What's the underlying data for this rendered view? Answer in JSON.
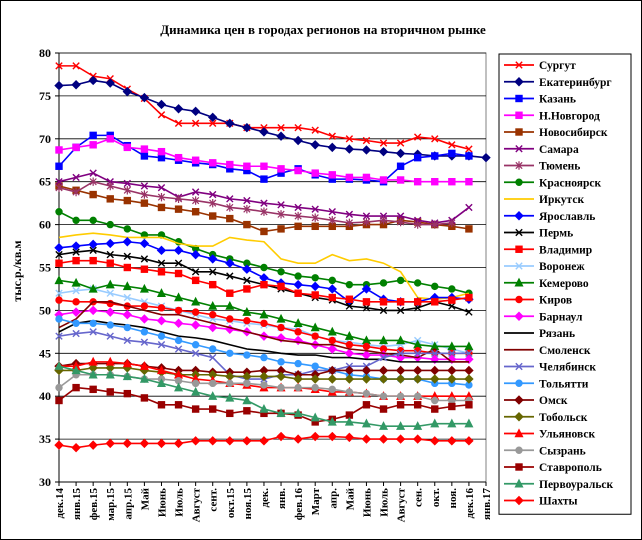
{
  "chart_data": {
    "type": "line",
    "title": "Динамика цен в городах регионов на вторичном рынке",
    "ylabel": "тыс.р./кв.м",
    "xlabel": "",
    "ylim": [
      30,
      80
    ],
    "yticks": [
      30,
      35,
      40,
      45,
      50,
      55,
      60,
      65,
      70,
      75,
      80
    ],
    "x_labels": [
      "дек.14",
      "янв.15",
      "фев.15",
      "мар.15",
      "апр.15",
      "Май",
      "Июнь",
      "Июль",
      "Август",
      "сент.",
      "окт.15",
      "ноя.15",
      "дек.",
      "янв.",
      "фев.16",
      "Март",
      "апр.",
      "Май",
      "Июнь",
      "Июль",
      "Август",
      "сен.",
      "окт.",
      "ноя.",
      "дек.16",
      "янв.17"
    ],
    "grid": true,
    "legend_position": "right",
    "series": [
      {
        "name": "Сургут",
        "color": "#ff0000",
        "marker": "x",
        "values": [
          78.5,
          78.5,
          77.3,
          77.0,
          75.8,
          74.7,
          72.8,
          71.8,
          71.8,
          71.8,
          71.8,
          71.3,
          71.3,
          71.3,
          71.3,
          71.0,
          70.3,
          70.0,
          69.8,
          69.5,
          69.5,
          70.2,
          70.0,
          69.3,
          68.8,
          null
        ]
      },
      {
        "name": "Екатеринбург",
        "color": "#000080",
        "marker": "diamond",
        "values": [
          76.2,
          76.3,
          76.8,
          76.5,
          75.5,
          74.8,
          74.0,
          73.5,
          73.2,
          72.5,
          71.8,
          71.3,
          70.8,
          70.3,
          69.8,
          69.3,
          69.0,
          68.8,
          68.7,
          68.5,
          68.3,
          68.2,
          68.0,
          68.0,
          68.0,
          67.8
        ]
      },
      {
        "name": "Казань",
        "color": "#0000ff",
        "marker": "square",
        "values": [
          66.8,
          69.0,
          70.4,
          70.4,
          69.2,
          68.0,
          67.8,
          67.5,
          67.2,
          67.0,
          66.5,
          66.3,
          65.3,
          66.0,
          66.5,
          65.8,
          65.3,
          65.3,
          65.2,
          65.0,
          66.8,
          67.8,
          68.0,
          68.3,
          68.0,
          null
        ]
      },
      {
        "name": "Н.Новгород",
        "color": "#ff00ff",
        "marker": "square",
        "values": [
          68.7,
          69.0,
          69.3,
          70.0,
          69.0,
          68.8,
          68.5,
          67.8,
          67.5,
          67.2,
          67.0,
          66.8,
          66.8,
          66.5,
          66.3,
          66.0,
          65.8,
          65.5,
          65.5,
          65.2,
          65.2,
          65.0,
          65.0,
          65.0,
          65.0,
          null
        ]
      },
      {
        "name": "Новосибирск",
        "color": "#993300",
        "marker": "square",
        "values": [
          64.5,
          64.0,
          63.5,
          63.0,
          62.8,
          62.5,
          62.0,
          61.8,
          61.5,
          61.0,
          60.7,
          60.0,
          59.2,
          59.5,
          59.8,
          59.8,
          59.8,
          59.8,
          60.0,
          60.0,
          60.5,
          60.3,
          60.0,
          59.8,
          59.5,
          null
        ]
      },
      {
        "name": "Самара",
        "color": "#800080",
        "marker": "x",
        "values": [
          65.0,
          65.5,
          66.0,
          65.0,
          64.8,
          64.5,
          64.3,
          63.2,
          63.8,
          63.5,
          63.0,
          62.8,
          62.5,
          62.3,
          62.0,
          61.8,
          61.5,
          61.2,
          61.0,
          61.0,
          61.0,
          60.5,
          60.2,
          60.5,
          62.0,
          null
        ]
      },
      {
        "name": "Тюмень",
        "color": "#993366",
        "marker": "star",
        "values": [
          64.3,
          63.8,
          65.0,
          64.5,
          64.0,
          63.5,
          63.2,
          63.0,
          62.8,
          62.5,
          62.0,
          61.8,
          61.5,
          61.2,
          61.0,
          60.8,
          60.5,
          60.2,
          60.3,
          60.5,
          60.3,
          60.0,
          60.0,
          60.2,
          null,
          null
        ]
      },
      {
        "name": "Красноярск",
        "color": "#008000",
        "marker": "circle",
        "values": [
          61.5,
          60.5,
          60.5,
          60.0,
          59.5,
          58.8,
          58.8,
          58.0,
          57.2,
          56.5,
          56.0,
          55.5,
          55.0,
          54.5,
          54.0,
          53.8,
          53.5,
          53.0,
          53.0,
          53.2,
          53.5,
          53.2,
          52.8,
          52.5,
          52.0,
          null
        ]
      },
      {
        "name": "Иркутск",
        "color": "#ffcc00",
        "marker": "none",
        "values": [
          58.5,
          58.8,
          59.0,
          58.8,
          58.5,
          58.5,
          58.5,
          57.8,
          57.5,
          57.5,
          58.5,
          58.2,
          58.0,
          56.0,
          55.5,
          55.5,
          56.5,
          55.8,
          56.0,
          55.5,
          54.5,
          51.5,
          51.3,
          51.5,
          52.0,
          null
        ]
      },
      {
        "name": "Ярославль",
        "color": "#0000ff",
        "marker": "diamond",
        "values": [
          57.3,
          57.5,
          57.7,
          57.8,
          58.0,
          57.8,
          57.0,
          57.0,
          56.5,
          56.0,
          55.5,
          54.8,
          53.8,
          53.2,
          53.0,
          52.8,
          52.5,
          51.0,
          52.5,
          51.3,
          51.0,
          51.0,
          51.5,
          51.5,
          51.3,
          null
        ]
      },
      {
        "name": "Пермь",
        "color": "#000000",
        "marker": "x",
        "values": [
          56.5,
          56.8,
          57.0,
          56.5,
          56.3,
          56.0,
          55.5,
          55.5,
          54.5,
          54.5,
          54.0,
          53.5,
          53.0,
          52.5,
          52.0,
          51.5,
          51.2,
          50.5,
          50.3,
          50.0,
          50.0,
          50.3,
          51.0,
          50.5,
          49.8,
          null
        ]
      },
      {
        "name": "Владимир",
        "color": "#ff0000",
        "marker": "square",
        "values": [
          55.5,
          55.8,
          55.8,
          55.5,
          55.0,
          54.8,
          54.5,
          54.3,
          53.5,
          53.0,
          52.0,
          52.5,
          53.0,
          52.8,
          52.0,
          51.8,
          51.5,
          51.3,
          51.0,
          51.0,
          51.0,
          51.0,
          51.0,
          51.2,
          51.5,
          null
        ]
      },
      {
        "name": "Воронеж",
        "color": "#99ccff",
        "marker": "x",
        "values": [
          52.0,
          52.3,
          52.5,
          52.0,
          51.5,
          51.0,
          50.5,
          50.0,
          49.5,
          49.0,
          48.8,
          48.5,
          48.3,
          48.0,
          47.8,
          47.0,
          46.5,
          46.3,
          46.0,
          45.8,
          46.0,
          46.5,
          46.0,
          45.5,
          45.0,
          null
        ]
      },
      {
        "name": "Кемерово",
        "color": "#008000",
        "marker": "triangle",
        "values": [
          53.5,
          53.2,
          52.5,
          53.0,
          52.8,
          52.5,
          52.0,
          51.5,
          51.0,
          50.5,
          50.5,
          49.8,
          49.5,
          49.0,
          48.5,
          48.0,
          47.5,
          47.0,
          46.5,
          46.5,
          46.5,
          46.0,
          45.8,
          45.8,
          45.8,
          null
        ]
      },
      {
        "name": "Киров",
        "color": "#ff0000",
        "marker": "circle",
        "values": [
          51.2,
          51.0,
          51.0,
          50.8,
          50.5,
          50.5,
          50.3,
          50.0,
          49.8,
          49.5,
          49.0,
          48.8,
          48.5,
          48.0,
          47.5,
          47.0,
          46.5,
          46.0,
          45.8,
          45.5,
          45.3,
          45.3,
          45.0,
          45.0,
          45.0,
          null
        ]
      },
      {
        "name": "Барнаул",
        "color": "#ff00ff",
        "marker": "diamond",
        "values": [
          49.5,
          49.8,
          50.0,
          49.8,
          49.5,
          49.0,
          48.8,
          48.5,
          48.3,
          48.0,
          47.8,
          47.5,
          47.0,
          46.8,
          46.5,
          46.0,
          45.5,
          45.0,
          44.8,
          44.8,
          44.5,
          44.5,
          44.3,
          44.3,
          44.3,
          null
        ]
      },
      {
        "name": "Рязань",
        "color": "#000000",
        "marker": "none",
        "values": [
          47.5,
          48.5,
          48.8,
          48.5,
          48.3,
          48.0,
          47.5,
          47.0,
          46.8,
          46.5,
          46.0,
          45.5,
          45.3,
          45.0,
          44.8,
          44.8,
          44.5,
          44.5,
          44.3,
          44.3,
          44.0,
          44.0,
          44.0,
          44.0,
          44.0,
          null
        ]
      },
      {
        "name": "Смоленск",
        "color": "#800000",
        "marker": "none",
        "values": [
          48.0,
          49.0,
          51.0,
          51.0,
          50.5,
          50.0,
          49.5,
          49.5,
          49.0,
          48.5,
          48.0,
          47.5,
          47.0,
          46.5,
          46.3,
          46.0,
          46.0,
          45.5,
          45.3,
          45.0,
          44.8,
          44.5,
          45.5,
          44.0,
          44.0,
          null
        ]
      },
      {
        "name": "Челябинск",
        "color": "#6666cc",
        "marker": "x",
        "values": [
          47.0,
          47.3,
          47.5,
          47.0,
          46.5,
          46.3,
          46.0,
          45.5,
          45.0,
          44.5,
          42.5,
          42.0,
          42.0,
          42.5,
          42.5,
          43.0,
          43.0,
          43.5,
          43.5,
          44.5,
          45.0,
          45.0,
          45.0,
          45.0,
          45.0,
          null
        ]
      },
      {
        "name": "Тольятти",
        "color": "#3399ff",
        "marker": "circle",
        "values": [
          49.0,
          48.5,
          48.5,
          48.3,
          48.0,
          47.5,
          47.0,
          46.5,
          46.0,
          45.5,
          45.0,
          44.8,
          44.5,
          44.0,
          43.8,
          43.5,
          43.0,
          42.5,
          42.3,
          42.0,
          42.0,
          42.0,
          41.5,
          41.5,
          41.3,
          null
        ]
      },
      {
        "name": "Омск",
        "color": "#800000",
        "marker": "diamond",
        "values": [
          43.5,
          43.8,
          43.8,
          43.8,
          43.8,
          43.5,
          43.3,
          43.0,
          43.0,
          42.8,
          42.8,
          42.8,
          43.0,
          43.0,
          42.5,
          42.5,
          43.0,
          43.0,
          43.0,
          43.0,
          43.0,
          43.0,
          43.0,
          43.0,
          43.0,
          null
        ]
      },
      {
        "name": "Тобольск",
        "color": "#666600",
        "marker": "diamond",
        "values": [
          43.0,
          43.0,
          43.3,
          43.3,
          43.3,
          43.0,
          42.8,
          42.5,
          42.5,
          42.5,
          42.3,
          42.3,
          42.3,
          42.3,
          42.0,
          42.0,
          42.0,
          42.0,
          42.0,
          42.0,
          42.0,
          42.0,
          42.0,
          42.0,
          42.0,
          null
        ]
      },
      {
        "name": "Ульяновск",
        "color": "#ff0000",
        "marker": "triangle",
        "values": [
          43.5,
          43.5,
          44.0,
          44.0,
          43.8,
          43.5,
          43.0,
          42.5,
          42.0,
          41.8,
          41.5,
          41.3,
          41.0,
          41.0,
          41.0,
          40.8,
          40.5,
          40.5,
          40.3,
          40.0,
          40.0,
          40.0,
          40.0,
          40.0,
          40.0,
          null
        ]
      },
      {
        "name": "Сызрань",
        "color": "#999999",
        "marker": "circle",
        "values": [
          41.0,
          42.5,
          42.5,
          42.5,
          42.3,
          42.0,
          42.0,
          41.8,
          41.5,
          41.5,
          41.5,
          41.5,
          41.3,
          41.0,
          41.0,
          41.0,
          40.8,
          40.5,
          40.3,
          40.0,
          40.0,
          40.0,
          39.5,
          39.5,
          39.5,
          null
        ]
      },
      {
        "name": "Ставрополь",
        "color": "#990000",
        "marker": "square",
        "values": [
          39.5,
          41.0,
          40.8,
          40.5,
          40.3,
          39.8,
          39.0,
          39.0,
          38.5,
          38.5,
          38.0,
          38.3,
          38.0,
          38.0,
          37.8,
          37.0,
          37.3,
          37.8,
          39.0,
          38.5,
          39.0,
          39.0,
          38.5,
          38.8,
          39.0,
          null
        ]
      },
      {
        "name": "Первоуральск",
        "color": "#339966",
        "marker": "triangle",
        "values": [
          43.5,
          43.0,
          42.5,
          42.5,
          42.3,
          42.0,
          41.5,
          41.0,
          40.5,
          40.0,
          39.8,
          39.5,
          38.5,
          38.0,
          38.0,
          37.5,
          37.0,
          37.0,
          36.8,
          36.5,
          36.5,
          36.5,
          36.8,
          36.8,
          36.8,
          null
        ]
      },
      {
        "name": "Шахты",
        "color": "#ff0000",
        "marker": "diamond",
        "values": [
          34.3,
          34.0,
          34.3,
          34.5,
          34.5,
          34.5,
          34.5,
          34.5,
          34.8,
          34.8,
          34.8,
          34.8,
          34.8,
          35.3,
          35.0,
          35.3,
          35.3,
          35.2,
          35.0,
          35.0,
          35.0,
          35.0,
          34.8,
          34.8,
          34.8,
          null
        ]
      }
    ]
  }
}
